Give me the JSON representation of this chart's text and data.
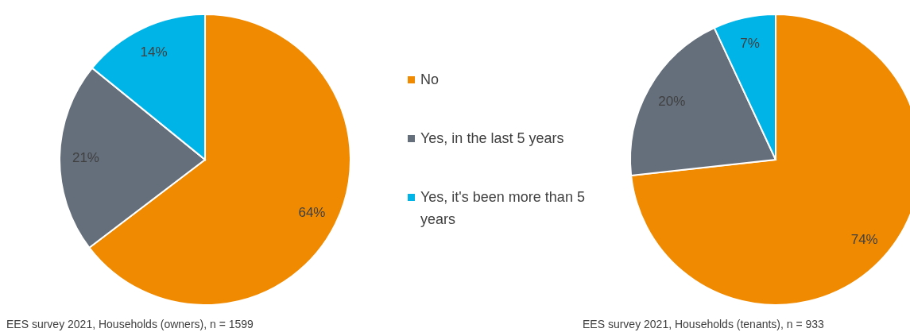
{
  "chart_data": [
    {
      "type": "pie",
      "categories": [
        "No",
        "Yes, in the last 5 years",
        "Yes, it's been more than 5 years"
      ],
      "values": [
        64,
        21,
        14
      ],
      "colors": [
        "#f08a00",
        "#656f7c",
        "#00b4e8"
      ],
      "value_labels": [
        "64%",
        "21%",
        "14%"
      ],
      "legend": "right",
      "annotations": [
        "EES survey 2021,  Households (owners), n = 1599"
      ]
    },
    {
      "type": "pie",
      "values": [
        74,
        20,
        7
      ],
      "colors": [
        "#f08a00",
        "#656f7c",
        "#00b4e8"
      ],
      "value_labels": [
        "74%",
        "20%",
        "7%"
      ],
      "annotations": [
        "EES survey 2021,  Households (tenants), n = 933"
      ]
    }
  ]
}
